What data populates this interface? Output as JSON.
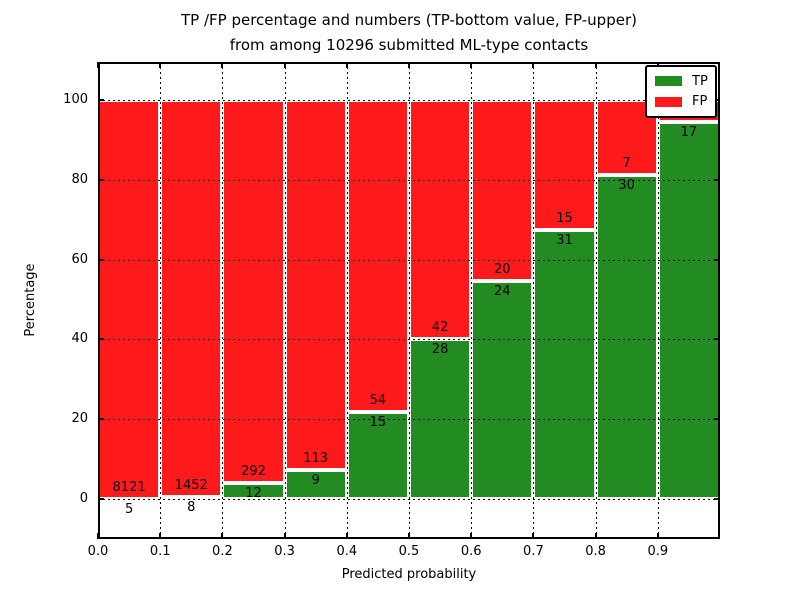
{
  "chart_data": {
    "type": "bar",
    "stacked": true,
    "normalized_to_100": true,
    "title_lines": [
      "TP /FP percentage and numbers (TP-bottom value, FP-upper)",
      "from among 10296 submitted ML-type contacts"
    ],
    "xlabel": "Predicted probability",
    "ylabel": "Percentage",
    "xlim": [
      0.0,
      1.0
    ],
    "ylim": [
      -10,
      110
    ],
    "xticks": [
      "0.0",
      "0.1",
      "0.2",
      "0.3",
      "0.4",
      "0.5",
      "0.6",
      "0.7",
      "0.8",
      "0.9"
    ],
    "yticks": [
      {
        "value": 0,
        "label": "0"
      },
      {
        "value": 20,
        "label": "20"
      },
      {
        "value": 40,
        "label": "40"
      },
      {
        "value": 60,
        "label": "60"
      },
      {
        "value": 80,
        "label": "80"
      },
      {
        "value": 100,
        "label": "100"
      }
    ],
    "grid": true,
    "grid_style": "dotted",
    "legend": {
      "position": "upper right",
      "entries": [
        {
          "label": "TP",
          "color": "#228b22"
        },
        {
          "label": "FP",
          "color": "#fe1a1a"
        }
      ]
    },
    "colors": {
      "tp": "#228b22",
      "fp": "#fe1a1a",
      "bar_edge": "#ffffff",
      "grid": "#000000"
    },
    "bins": [
      {
        "range": [
          0.0,
          0.1
        ],
        "tp_count_label": "5",
        "fp_count_label": "8121",
        "tp_pct": 0.06
      },
      {
        "range": [
          0.1,
          0.2
        ],
        "tp_count_label": "8",
        "fp_count_label": "1452",
        "tp_pct": 0.55
      },
      {
        "range": [
          0.2,
          0.3
        ],
        "tp_count_label": "12",
        "fp_count_label": "292",
        "tp_pct": 3.95
      },
      {
        "range": [
          0.3,
          0.4
        ],
        "tp_count_label": "9",
        "fp_count_label": "113",
        "tp_pct": 7.38
      },
      {
        "range": [
          0.4,
          0.5
        ],
        "tp_count_label": "15",
        "fp_count_label": "54",
        "tp_pct": 21.74
      },
      {
        "range": [
          0.5,
          0.6
        ],
        "tp_count_label": "28",
        "fp_count_label": "42",
        "tp_pct": 40.0
      },
      {
        "range": [
          0.6,
          0.7
        ],
        "tp_count_label": "24",
        "fp_count_label": "20",
        "tp_pct": 54.55
      },
      {
        "range": [
          0.7,
          0.8
        ],
        "tp_count_label": "31",
        "fp_count_label": "15",
        "tp_pct": 67.39
      },
      {
        "range": [
          0.8,
          0.9
        ],
        "tp_count_label": "30",
        "fp_count_label": "7",
        "tp_pct": 81.08
      },
      {
        "range": [
          0.9,
          1.0
        ],
        "tp_count_label": "17",
        "fp_count_label": "",
        "tp_pct": 94.44
      }
    ]
  }
}
